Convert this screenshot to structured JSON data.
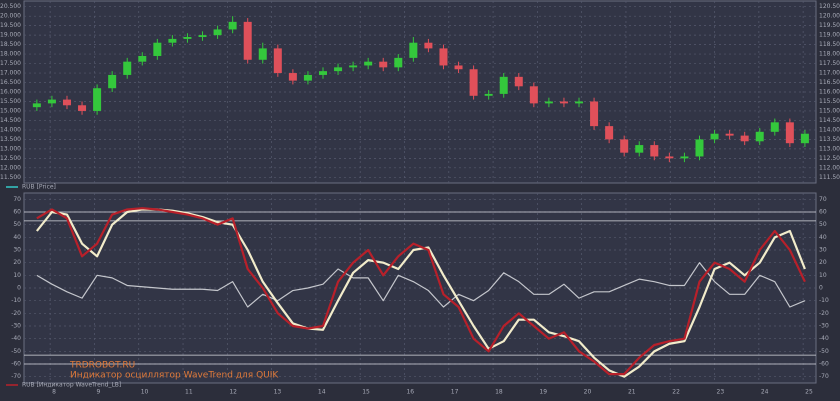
{
  "chart_data": [
    {
      "type": "candlestick",
      "x": [
        7.7,
        8.04,
        8.38,
        8.72,
        9.06,
        9.4,
        9.74,
        10.08,
        10.42,
        10.76,
        11.1,
        11.44,
        11.78,
        12.12,
        12.46,
        12.8,
        13.14,
        13.48,
        13.82,
        14.16,
        14.5,
        14.84,
        15.18,
        15.52,
        15.86,
        16.2,
        16.54,
        16.88,
        17.22,
        17.56,
        17.9,
        18.24,
        18.58,
        18.92,
        19.26,
        19.6,
        19.94,
        20.28,
        20.62,
        20.96,
        21.3,
        21.64,
        21.98,
        22.32,
        22.66,
        23.0,
        23.34,
        23.68,
        24.02,
        24.36,
        24.7,
        25.04
      ],
      "series": [
        {
          "name": "RUB [Price]",
          "open": [
            115.2,
            115.4,
            115.6,
            115.3,
            115.0,
            116.2,
            116.9,
            117.6,
            117.9,
            118.6,
            118.8,
            118.9,
            119.0,
            119.3,
            119.7,
            117.7,
            118.3,
            117.0,
            116.6,
            116.9,
            117.1,
            117.3,
            117.4,
            117.6,
            117.3,
            117.8,
            118.6,
            118.3,
            117.4,
            117.2,
            115.8,
            115.9,
            116.8,
            116.3,
            115.4,
            115.5,
            115.4,
            115.5,
            114.2,
            113.5,
            112.8,
            113.2,
            112.6,
            112.5,
            112.6,
            113.5,
            113.8,
            113.7,
            113.4,
            113.9,
            114.4,
            113.3
          ],
          "high": [
            115.6,
            115.8,
            115.8,
            115.5,
            116.4,
            117.1,
            117.8,
            118.1,
            118.8,
            119.0,
            119.1,
            119.2,
            119.5,
            120.0,
            119.9,
            118.6,
            118.5,
            117.2,
            117.1,
            117.3,
            117.5,
            117.6,
            117.8,
            117.8,
            118.0,
            118.9,
            118.8,
            118.5,
            117.6,
            117.4,
            116.1,
            117.0,
            117.0,
            116.5,
            115.7,
            115.7,
            115.7,
            115.7,
            114.4,
            113.7,
            113.4,
            113.4,
            112.8,
            112.8,
            113.7,
            114.0,
            114.0,
            113.9,
            114.1,
            114.6,
            114.6,
            114.0
          ],
          "low": [
            115.0,
            115.2,
            115.1,
            114.8,
            114.8,
            116.0,
            116.7,
            117.4,
            117.7,
            118.4,
            118.6,
            118.7,
            118.8,
            119.1,
            117.5,
            117.5,
            116.8,
            116.4,
            116.4,
            116.7,
            116.9,
            117.1,
            117.2,
            117.1,
            117.1,
            117.6,
            118.1,
            117.2,
            117.0,
            115.6,
            115.6,
            115.7,
            116.1,
            115.2,
            115.2,
            115.2,
            115.2,
            114.0,
            113.3,
            112.6,
            112.6,
            112.4,
            112.3,
            112.3,
            112.4,
            113.3,
            113.5,
            113.2,
            113.2,
            113.7,
            113.1,
            113.1
          ],
          "close": [
            115.4,
            115.6,
            115.3,
            115.0,
            116.2,
            116.9,
            117.6,
            117.9,
            118.6,
            118.8,
            118.9,
            119.0,
            119.3,
            119.7,
            117.7,
            118.3,
            117.0,
            116.6,
            116.9,
            117.1,
            117.3,
            117.4,
            117.6,
            117.3,
            117.8,
            118.6,
            118.3,
            117.4,
            117.2,
            115.8,
            115.9,
            116.8,
            116.3,
            115.4,
            115.5,
            115.4,
            115.5,
            114.2,
            113.5,
            112.8,
            113.2,
            112.6,
            112.5,
            112.6,
            113.5,
            113.8,
            113.7,
            113.4,
            113.9,
            114.4,
            113.3,
            113.8
          ]
        }
      ],
      "up_color": "#34c83c",
      "down_color": "#e0505a",
      "xlim": [
        7.5,
        25.2
      ],
      "xticks": [
        8,
        9,
        10,
        11,
        12,
        13,
        14,
        15,
        16,
        17,
        18,
        19,
        20,
        21,
        22,
        23,
        24,
        25
      ],
      "ylim": [
        111.2,
        120.8
      ],
      "yticks": [
        {
          "value": 111.5,
          "label": "111.500"
        },
        {
          "value": 112,
          "label": "112.000"
        },
        {
          "value": 112.5,
          "label": "112.500"
        },
        {
          "value": 113,
          "label": "113.000"
        },
        {
          "value": 113.5,
          "label": "113.500"
        },
        {
          "value": 114,
          "label": "114.000"
        },
        {
          "value": 114.5,
          "label": "114.500"
        },
        {
          "value": 115,
          "label": "115.000"
        },
        {
          "value": 115.5,
          "label": "115.500"
        },
        {
          "value": 116,
          "label": "116.000"
        },
        {
          "value": 116.5,
          "label": "116.500"
        },
        {
          "value": 117,
          "label": "117.000"
        },
        {
          "value": 117.5,
          "label": "117.500"
        },
        {
          "value": 118,
          "label": "118.000"
        },
        {
          "value": 118.5,
          "label": "118.500"
        },
        {
          "value": 119,
          "label": "119.000"
        },
        {
          "value": 119.5,
          "label": "119.500"
        },
        {
          "value": 120,
          "label": "120.000"
        },
        {
          "value": 120.5,
          "label": "120.500"
        }
      ],
      "grid": true
    },
    {
      "type": "line",
      "title": "TRDROBOT.RU",
      "subtitle": "Индикатор осциллятор WaveTrend для QUIK",
      "series_label": "RUB [Индикатор WaveTrend_LB]",
      "x": [
        7.7,
        8.04,
        8.38,
        8.72,
        9.06,
        9.4,
        9.74,
        10.08,
        10.42,
        10.76,
        11.1,
        11.44,
        11.78,
        12.12,
        12.46,
        12.8,
        13.14,
        13.48,
        13.82,
        14.16,
        14.5,
        14.84,
        15.18,
        15.52,
        15.86,
        16.2,
        16.54,
        16.88,
        17.22,
        17.56,
        17.9,
        18.24,
        18.58,
        18.92,
        19.26,
        19.6,
        19.94,
        20.28,
        20.62,
        20.96,
        21.3,
        21.64,
        21.98,
        22.32,
        22.66,
        23.0,
        23.34,
        23.68,
        24.02,
        24.36,
        24.7,
        25.04
      ],
      "series": [
        {
          "color": "#b8202a",
          "values": [
            55,
            62,
            55,
            25,
            35,
            58,
            62,
            63,
            62,
            60,
            58,
            55,
            50,
            55,
            15,
            0,
            -20,
            -30,
            -32,
            -30,
            5,
            20,
            30,
            10,
            25,
            35,
            30,
            -5,
            -15,
            -40,
            -50,
            -30,
            -20,
            -30,
            -40,
            -35,
            -50,
            -58,
            -68,
            -68,
            -55,
            -45,
            -42,
            -40,
            5,
            20,
            15,
            5,
            30,
            45,
            30,
            5
          ]
        },
        {
          "color": "#f2eccb",
          "values": [
            45,
            60,
            58,
            35,
            25,
            50,
            60,
            62,
            62,
            61,
            59,
            56,
            52,
            50,
            30,
            5,
            -12,
            -28,
            -32,
            -33,
            -10,
            12,
            22,
            20,
            15,
            30,
            32,
            10,
            -10,
            -30,
            -48,
            -42,
            -25,
            -25,
            -35,
            -38,
            -42,
            -55,
            -65,
            -70,
            -62,
            -50,
            -44,
            -42,
            -15,
            15,
            20,
            10,
            20,
            40,
            45,
            15
          ]
        },
        {
          "color": "#c4c6cc",
          "values": [
            10,
            3,
            -3,
            -8,
            10,
            8,
            2,
            1,
            0,
            -1,
            -1,
            -1,
            -2,
            5,
            -15,
            -5,
            -10,
            -2,
            0,
            3,
            15,
            8,
            8,
            -10,
            10,
            5,
            -2,
            -15,
            -5,
            -10,
            -2,
            12,
            5,
            -5,
            -5,
            3,
            -8,
            -3,
            -3,
            2,
            7,
            5,
            2,
            2,
            20,
            5,
            -5,
            -5,
            10,
            5,
            -15,
            -10
          ]
        }
      ],
      "levels": [
        60,
        53,
        -53,
        -60
      ],
      "xlim": [
        7.5,
        25.2
      ],
      "xticks": [
        8,
        9,
        10,
        11,
        12,
        13,
        14,
        15,
        16,
        17,
        18,
        19,
        20,
        21,
        22,
        23,
        24,
        25
      ],
      "ylim": [
        -75,
        75
      ],
      "yticks": [
        -70,
        -60,
        -50,
        -40,
        -30,
        -20,
        -10,
        0,
        10,
        20,
        30,
        40,
        50,
        60,
        70
      ],
      "grid": true
    }
  ]
}
